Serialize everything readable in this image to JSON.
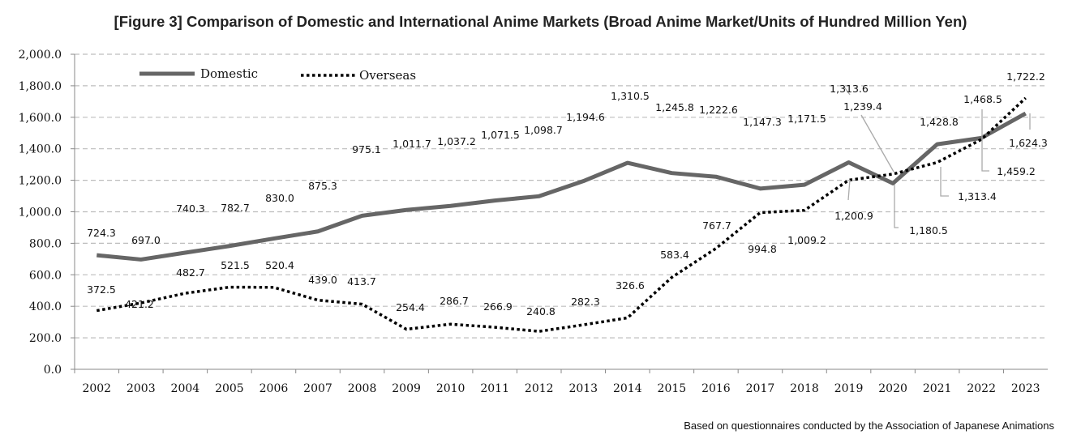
{
  "chart_data": {
    "type": "line",
    "title": "[Figure 3] Comparison of Domestic and International Anime Markets (Broad Anime Market/Units of Hundred Million Yen)",
    "source_note": "Based on questionnaires conducted by the Association of Japanese Animations",
    "categories": [
      "2002",
      "2003",
      "2004",
      "2005",
      "2006",
      "2007",
      "2008",
      "2009",
      "2010",
      "2011",
      "2012",
      "2013",
      "2014",
      "2015",
      "2016",
      "2017",
      "2018",
      "2019",
      "2020",
      "2021",
      "2022",
      "2023"
    ],
    "ylim": [
      0,
      2000
    ],
    "yticks": [
      "0.0",
      "200.0",
      "400.0",
      "600.0",
      "800.0",
      "1,000.0",
      "1,200.0",
      "1,400.0",
      "1,600.0",
      "1,800.0",
      "2,000.0"
    ],
    "grid": true,
    "legend_position": "top-left",
    "series": [
      {
        "name": "Domestic",
        "style": "solid",
        "color": "#666666",
        "values": [
          724.3,
          697.0,
          740.3,
          782.7,
          830.0,
          875.3,
          975.1,
          1011.7,
          1037.2,
          1071.5,
          1098.7,
          1194.6,
          1310.5,
          1245.8,
          1222.6,
          1147.3,
          1171.5,
          1313.6,
          1180.5,
          1428.8,
          1468.5,
          1624.3
        ],
        "labels": [
          "724.3",
          "697.0",
          "740.3",
          "782.7",
          "830.0",
          "875.3",
          "975.1",
          "1,011.7",
          "1,037.2",
          "1,071.5",
          "1,098.7",
          "1,194.6",
          "1,310.5",
          "1,245.8",
          "1,222.6",
          "1,147.3",
          "1,171.5",
          "1,313.6",
          "1,180.5",
          "1,428.8",
          "1,468.5",
          "1,624.3"
        ]
      },
      {
        "name": "Overseas",
        "style": "dotted",
        "color": "#000000",
        "values": [
          372.5,
          421.2,
          482.7,
          521.5,
          520.4,
          439.0,
          413.7,
          254.4,
          286.7,
          266.9,
          240.8,
          282.3,
          326.6,
          583.4,
          767.7,
          994.8,
          1009.2,
          1200.9,
          1239.4,
          1313.4,
          1459.2,
          1722.2
        ],
        "labels": [
          "372.5",
          "421.2",
          "482.7",
          "521.5",
          "520.4",
          "439.0",
          "413.7",
          "254.4",
          "286.7",
          "266.9",
          "240.8",
          "282.3",
          "326.6",
          "583.4",
          "767.7",
          "994.8",
          "1,009.2",
          "1,200.9",
          "1,239.4",
          "1,313.4",
          "1,459.2",
          "1,722.2"
        ]
      }
    ]
  }
}
